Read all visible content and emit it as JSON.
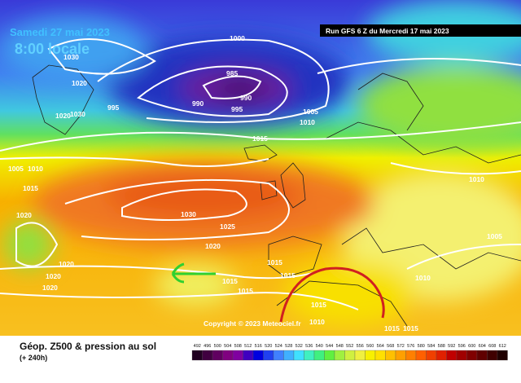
{
  "header": {
    "date": "Samedi 27 mai 2023",
    "time": "8:00 locale",
    "run": "Run GFS 6 Z du Mercredi 17 mai 2023"
  },
  "copyright": "Copyright © 2023 Meteociel.fr",
  "footer": {
    "title": "Géop. Z500 & pression au sol",
    "lead": "(+ 240h)"
  },
  "isobar_labels": [
    "1000",
    "1030",
    "985",
    "990",
    "990",
    "995",
    "995",
    "1020",
    "1020",
    "1030",
    "1005",
    "1010",
    "1015",
    "1005",
    "1010",
    "1015",
    "1020",
    "1030",
    "1025",
    "1020",
    "1020",
    "1020",
    "1020",
    "1015",
    "1015",
    "1015",
    "1015",
    "1015",
    "1010",
    "1015",
    "1015",
    "1010",
    "1005",
    "1010"
  ],
  "legend": {
    "levels": [
      "492",
      "496",
      "500",
      "504",
      "508",
      "512",
      "516",
      "520",
      "524",
      "528",
      "532",
      "536",
      "540",
      "544",
      "548",
      "552",
      "556",
      "560",
      "564",
      "568",
      "572",
      "576",
      "580",
      "584",
      "588",
      "592",
      "596",
      "600",
      "604",
      "608",
      "612"
    ],
    "colors": [
      "#200020",
      "#400040",
      "#600060",
      "#800080",
      "#8000a0",
      "#4000c0",
      "#0000e0",
      "#2040f0",
      "#4080ff",
      "#40b0ff",
      "#40e0ff",
      "#40f0c0",
      "#40f080",
      "#60f040",
      "#a0f040",
      "#d0f040",
      "#f0f040",
      "#f8f000",
      "#ffe000",
      "#ffc000",
      "#ffa000",
      "#ff8000",
      "#ff6000",
      "#f04000",
      "#e02000",
      "#c00000",
      "#a00000",
      "#800000",
      "#600000",
      "#400000",
      "#200000"
    ]
  }
}
